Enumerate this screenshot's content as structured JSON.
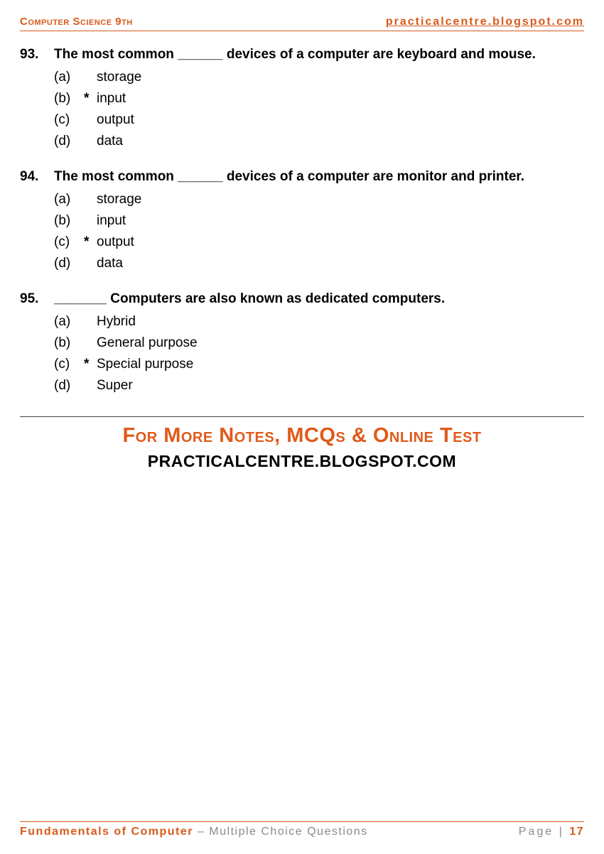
{
  "colors": {
    "accent": "#d85a1a",
    "text": "#000000",
    "muted": "#8a8a8a",
    "divider": "#404040",
    "background": "#ffffff"
  },
  "header": {
    "left": "Computer Science 9th",
    "right": "practicalcentre.blogspot.com"
  },
  "questions": [
    {
      "num": "93.",
      "text": "The most common ______ devices of a computer are keyboard and mouse.",
      "options": [
        {
          "label": "(a)",
          "mark": "",
          "text": "storage"
        },
        {
          "label": "(b)",
          "mark": "*",
          "text": "input"
        },
        {
          "label": "(c)",
          "mark": "",
          "text": "output"
        },
        {
          "label": "(d)",
          "mark": "",
          "text": "data"
        }
      ]
    },
    {
      "num": "94.",
      "text": "The most common ______ devices of a computer are monitor and printer.",
      "options": [
        {
          "label": "(a)",
          "mark": "",
          "text": "storage"
        },
        {
          "label": "(b)",
          "mark": "",
          "text": "input"
        },
        {
          "label": "(c)",
          "mark": "*",
          "text": "output"
        },
        {
          "label": "(d)",
          "mark": "",
          "text": "data"
        }
      ]
    },
    {
      "num": "95.",
      "text": "_______ Computers are also known as dedicated computers.",
      "options": [
        {
          "label": "(a)",
          "mark": "",
          "text": "Hybrid"
        },
        {
          "label": "(b)",
          "mark": "",
          "text": "General purpose"
        },
        {
          "label": "(c)",
          "mark": "*",
          "text": "Special purpose"
        },
        {
          "label": "(d)",
          "mark": "",
          "text": "Super"
        }
      ]
    }
  ],
  "promo": {
    "line1": "For More Notes, MCQs & Online Test",
    "line2": "PRACTICALCENTRE.BLOGSPOT.COM"
  },
  "footer": {
    "left_a": "Fundamentals of Computer",
    "left_b": " – Multiple Choice Questions",
    "right_a": "Page | ",
    "right_b": "17"
  }
}
